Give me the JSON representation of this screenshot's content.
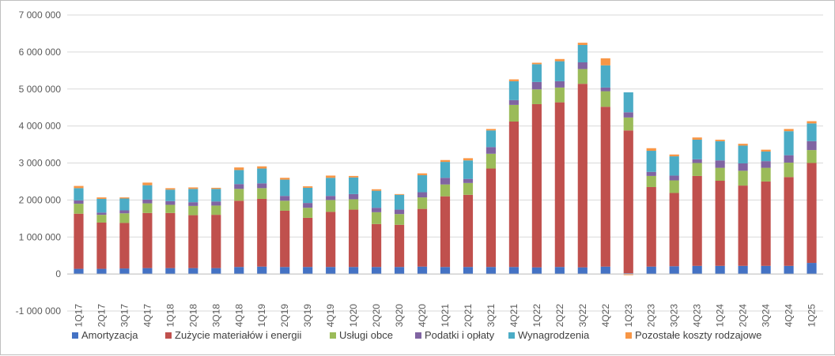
{
  "chart_data": {
    "type": "bar",
    "stacked": true,
    "title": "",
    "xlabel": "",
    "ylabel": "",
    "ylim": [
      -1000000,
      7000000
    ],
    "y_ticks": [
      -1000000,
      0,
      1000000,
      2000000,
      3000000,
      4000000,
      5000000,
      6000000,
      7000000
    ],
    "y_tick_labels": [
      "-1 000 000",
      "0",
      "1 000 000",
      "2 000 000",
      "3 000 000",
      "4 000 000",
      "5 000 000",
      "6 000 000",
      "7 000 000"
    ],
    "grid": true,
    "legend_position": "bottom",
    "categories": [
      "1Q17",
      "2Q17",
      "3Q17",
      "4Q17",
      "1Q18",
      "2Q18",
      "3Q18",
      "4Q18",
      "1Q19",
      "2Q19",
      "3Q19",
      "4Q19",
      "1Q20",
      "2Q20",
      "3Q20",
      "4Q20",
      "1Q21",
      "2Q21",
      "3Q21",
      "4Q21",
      "1Q22",
      "2Q22",
      "3Q22",
      "4Q22",
      "1Q23",
      "2Q23",
      "3Q23",
      "4Q23",
      "1Q24",
      "2Q24",
      "3Q24",
      "4Q24",
      "1Q25"
    ],
    "series": [
      {
        "name": "Amortyzacja",
        "color": "#4472c4",
        "values": [
          140000,
          140000,
          150000,
          160000,
          160000,
          160000,
          160000,
          190000,
          200000,
          190000,
          190000,
          190000,
          190000,
          190000,
          190000,
          200000,
          190000,
          190000,
          190000,
          190000,
          180000,
          190000,
          180000,
          200000,
          20000,
          200000,
          210000,
          220000,
          220000,
          220000,
          220000,
          220000,
          300000
        ]
      },
      {
        "name": "Zużycie materiałów i energii",
        "color": "#c0504d",
        "values": [
          1490000,
          1250000,
          1230000,
          1490000,
          1490000,
          1430000,
          1440000,
          1790000,
          1830000,
          1520000,
          1330000,
          1490000,
          1550000,
          1160000,
          1140000,
          1560000,
          1910000,
          1950000,
          2660000,
          3930000,
          4410000,
          4450000,
          4960000,
          4320000,
          3860000,
          2150000,
          1980000,
          2430000,
          2300000,
          2170000,
          2280000,
          2400000,
          2700000
        ]
      },
      {
        "name": "Usługi obce",
        "color": "#9bbb59",
        "values": [
          270000,
          210000,
          260000,
          260000,
          220000,
          250000,
          250000,
          320000,
          290000,
          270000,
          270000,
          320000,
          280000,
          320000,
          290000,
          310000,
          320000,
          320000,
          400000,
          450000,
          400000,
          400000,
          400000,
          420000,
          350000,
          300000,
          340000,
          350000,
          350000,
          400000,
          370000,
          390000,
          350000
        ]
      },
      {
        "name": "Podatki i opłaty",
        "color": "#8064a2",
        "values": [
          90000,
          60000,
          80000,
          100000,
          100000,
          100000,
          110000,
          130000,
          130000,
          130000,
          130000,
          110000,
          140000,
          120000,
          120000,
          140000,
          180000,
          110000,
          180000,
          130000,
          200000,
          170000,
          180000,
          100000,
          140000,
          110000,
          130000,
          100000,
          200000,
          200000,
          180000,
          200000,
          240000
        ]
      },
      {
        "name": "Wynagrodzenia",
        "color": "#4bacc6",
        "values": [
          330000,
          370000,
          320000,
          390000,
          310000,
          360000,
          340000,
          380000,
          400000,
          440000,
          410000,
          490000,
          450000,
          460000,
          400000,
          460000,
          430000,
          500000,
          450000,
          510000,
          480000,
          540000,
          470000,
          600000,
          540000,
          570000,
          520000,
          530000,
          520000,
          480000,
          260000,
          650000,
          480000
        ]
      },
      {
        "name": "Pozostałe koszty rodzajowe",
        "color": "#f79646",
        "values": [
          60000,
          40000,
          30000,
          70000,
          40000,
          40000,
          30000,
          70000,
          60000,
          50000,
          40000,
          60000,
          40000,
          40000,
          20000,
          50000,
          50000,
          60000,
          40000,
          50000,
          40000,
          60000,
          60000,
          190000,
          -30000,
          70000,
          50000,
          60000,
          40000,
          50000,
          50000,
          60000,
          60000
        ]
      }
    ]
  }
}
